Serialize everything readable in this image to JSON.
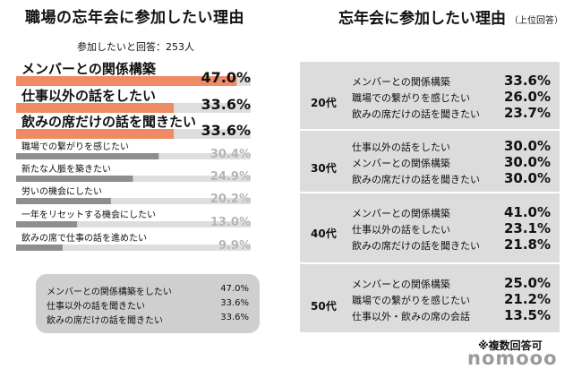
{
  "left_title": "職場の忘年会に参加したい理由",
  "left_subtitle": "参加したいと回答：253人",
  "chart_data": {
    "type": "bar",
    "orientation": "horizontal",
    "categories": [
      "メンバーとの関係構築",
      "仕事以外の話をしたい",
      "飲みの席だけの話を聞きたい",
      "職場での繋がりを感じたい",
      "新たな人脈を築きたい",
      "労いの機会にしたい",
      "一年をリセットする機会にしたい",
      "飲みの席で仕事の話を進めたい"
    ],
    "values": [
      47.0,
      33.6,
      33.6,
      30.4,
      24.9,
      20.2,
      13.0,
      9.9
    ],
    "value_labels": [
      "47.0%",
      "33.6%",
      "33.6%",
      "30.4%",
      "24.9%",
      "20.2%",
      "13.0%",
      "9.9%"
    ],
    "highlight_count": 3,
    "colors": {
      "highlight": "#ee8a64",
      "normal": "#8e8e8e",
      "track": "#dedede",
      "label_light": "#b5b5b5"
    }
  },
  "summary": [
    {
      "label": "メンバーとの関係構築をしたい",
      "value": "47.0%"
    },
    {
      "label": "仕事以外の話を聞きたい",
      "value": "33.6%"
    },
    {
      "label": "飲みの席だけの話を聞きたい",
      "value": "33.6%"
    }
  ],
  "right_title": "忘年会に参加したい理由",
  "right_title_note": "（上位回答）",
  "age_groups": [
    {
      "age": "20代",
      "items": [
        {
          "label": "メンバーとの関係構築",
          "value": "33.6%"
        },
        {
          "label": "職場での繋がりを感じたい",
          "value": "26.0%"
        },
        {
          "label": "飲みの席だけの話を聞きたい",
          "value": "23.7%"
        }
      ]
    },
    {
      "age": "30代",
      "items": [
        {
          "label": "仕事以外の話をしたい",
          "value": "30.0%"
        },
        {
          "label": "メンバーとの関係構築",
          "value": "30.0%"
        },
        {
          "label": "飲みの席だけの話を聞きたい",
          "value": "30.0%"
        }
      ]
    },
    {
      "age": "40代",
      "items": [
        {
          "label": "メンバーとの関係構築",
          "value": "41.0%"
        },
        {
          "label": "仕事以外の話をしたい",
          "value": "23.1%"
        },
        {
          "label": "飲みの席だけの話を聞きたい",
          "value": "21.8%"
        }
      ]
    },
    {
      "age": "50代",
      "items": [
        {
          "label": "メンバーとの関係構築",
          "value": "25.0%"
        },
        {
          "label": "職場での繋がりを感じたい",
          "value": "21.2%"
        },
        {
          "label": "仕事以外・飲みの席の会話",
          "value": "13.5%"
        }
      ]
    }
  ],
  "note": "※複数回答可",
  "logo": "nomooo"
}
